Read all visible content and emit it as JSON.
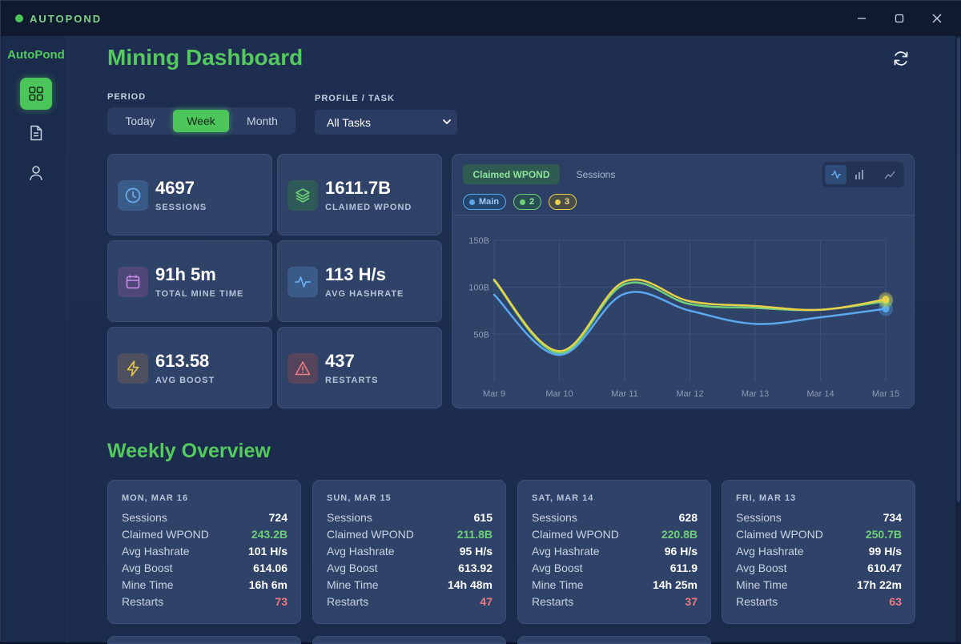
{
  "window": {
    "title": "AUTOPOND",
    "minimize": "—",
    "maximize": "☐",
    "close": "✕"
  },
  "sidebar": {
    "brand": "AutoPond"
  },
  "header": {
    "title": "Mining Dashboard"
  },
  "period": {
    "label": "PERIOD",
    "options": [
      "Today",
      "Week",
      "Month"
    ],
    "selected": "Week"
  },
  "profile": {
    "label": "PROFILE / TASK",
    "selected": "All Tasks"
  },
  "stats": [
    {
      "value": "4697",
      "label": "SESSIONS",
      "icon": "clock-icon"
    },
    {
      "value": "1611.7B",
      "label": "CLAIMED WPOND",
      "icon": "layers-icon"
    },
    {
      "value": "91h 5m",
      "label": "TOTAL MINE TIME",
      "icon": "calendar-icon"
    },
    {
      "value": "113 H/s",
      "label": "AVG HASHRATE",
      "icon": "activity-icon"
    },
    {
      "value": "613.58",
      "label": "AVG BOOST",
      "icon": "lightning-icon"
    },
    {
      "value": "437",
      "label": "RESTARTS",
      "icon": "warning-icon"
    }
  ],
  "chart_panel": {
    "tabs": [
      "Claimed WPOND",
      "Sessions"
    ],
    "active_tab": "Claimed WPOND",
    "series_chips": [
      "Main",
      "2",
      "3"
    ]
  },
  "chart_data": {
    "type": "line",
    "title": "",
    "xlabel": "",
    "ylabel": "",
    "x": [
      "Mar 9",
      "Mar 10",
      "Mar 11",
      "Mar 12",
      "Mar 13",
      "Mar 14",
      "Mar 15"
    ],
    "yticks": [
      "50B",
      "100B",
      "150B"
    ],
    "ylim": [
      0,
      160
    ],
    "series": [
      {
        "name": "Main",
        "color": "#5aa8f0",
        "values": [
          92,
          28,
          93,
          75,
          61,
          68,
          77
        ]
      },
      {
        "name": "2",
        "color": "#6fcf7a",
        "values": [
          107,
          30,
          103,
          82,
          78,
          76,
          85
        ]
      },
      {
        "name": "3",
        "color": "#e8d04a",
        "values": [
          108,
          32,
          106,
          85,
          80,
          76,
          87
        ]
      }
    ]
  },
  "weekly": {
    "title": "Weekly Overview",
    "row_labels": [
      "Sessions",
      "Claimed WPOND",
      "Avg Hashrate",
      "Avg Boost",
      "Mine Time",
      "Restarts"
    ],
    "days": [
      {
        "date": "MON, MAR 16",
        "sessions": "724",
        "claimed": "243.2B",
        "hashrate": "101 H/s",
        "boost": "614.06",
        "mine_time": "16h 6m",
        "restarts": "73"
      },
      {
        "date": "SUN, MAR 15",
        "sessions": "615",
        "claimed": "211.8B",
        "hashrate": "95 H/s",
        "boost": "613.92",
        "mine_time": "14h 48m",
        "restarts": "47"
      },
      {
        "date": "SAT, MAR 14",
        "sessions": "628",
        "claimed": "220.8B",
        "hashrate": "96 H/s",
        "boost": "611.9",
        "mine_time": "14h 25m",
        "restarts": "37"
      },
      {
        "date": "FRI, MAR 13",
        "sessions": "734",
        "claimed": "250.7B",
        "hashrate": "99 H/s",
        "boost": "610.47",
        "mine_time": "17h 22m",
        "restarts": "63"
      }
    ]
  }
}
